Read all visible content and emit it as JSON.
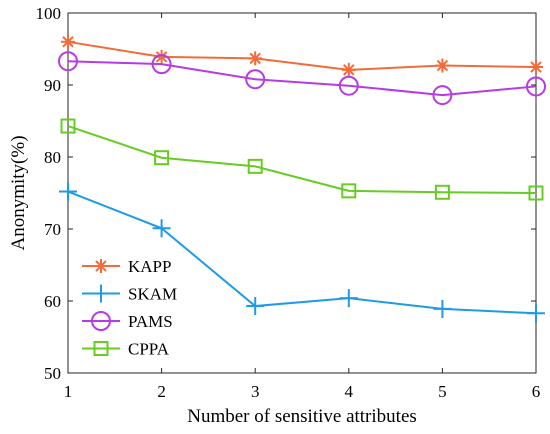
{
  "chart_data": {
    "type": "line",
    "xlabel": "Number of sensitive attributes",
    "ylabel": "Anonymity(%)",
    "x": [
      1,
      2,
      3,
      4,
      5,
      6
    ],
    "xlim": [
      1,
      6
    ],
    "ylim": [
      50,
      100
    ],
    "xticks": [
      "1",
      "2",
      "3",
      "4",
      "5",
      "6"
    ],
    "yticks": [
      "50",
      "60",
      "70",
      "80",
      "90",
      "100"
    ],
    "grid": false,
    "legend_position": "bottom-left",
    "series": [
      {
        "name": "KAPP",
        "marker": "asterisk",
        "color": "#F26B38",
        "values": [
          96.0,
          93.9,
          93.7,
          92.1,
          92.7,
          92.5
        ]
      },
      {
        "name": "SKAM",
        "marker": "plus",
        "color": "#1E9BE6",
        "values": [
          75.2,
          70.1,
          59.3,
          60.4,
          58.9,
          58.3
        ]
      },
      {
        "name": "PAMS",
        "marker": "circle",
        "color": "#B63BE6",
        "values": [
          93.3,
          92.9,
          90.8,
          89.9,
          88.6,
          89.8
        ]
      },
      {
        "name": "CPPA",
        "marker": "square",
        "color": "#66CC22",
        "values": [
          84.3,
          79.9,
          78.7,
          75.3,
          75.1,
          75.0
        ]
      }
    ]
  }
}
